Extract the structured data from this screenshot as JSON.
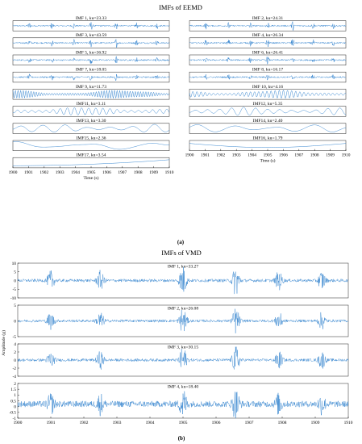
{
  "chart_data": [
    {
      "type": "line",
      "title": "IMFs of EEMD",
      "caption": "(a)",
      "xlabel": "Time (s)",
      "xlim": [
        1900,
        1910
      ],
      "xticks": [
        "1900",
        "1901",
        "1902",
        "1903",
        "1904",
        "1905",
        "1906",
        "1907",
        "1908",
        "1909",
        "1910"
      ],
      "series": [
        {
          "name": "IMF 1, ku=23.33",
          "kurtosis": 23.33,
          "kind": "impulsive"
        },
        {
          "name": "IMF 2, ku=24.31",
          "kurtosis": 24.31,
          "kind": "impulsive"
        },
        {
          "name": "IMF 3, ku=43.59",
          "kurtosis": 43.59,
          "kind": "impulsive"
        },
        {
          "name": "IMF 4, ku=26.34",
          "kurtosis": 26.34,
          "kind": "impulsive"
        },
        {
          "name": "IMF 5, ku=36.92",
          "kurtosis": 36.92,
          "kind": "impulsive"
        },
        {
          "name": "IMF 6, ku=26.41",
          "kurtosis": 26.41,
          "kind": "impulsive"
        },
        {
          "name": "IMF 7, ku=18.05",
          "kurtosis": 18.05,
          "kind": "impulsive"
        },
        {
          "name": "IMF 8, ku=16.17",
          "kurtosis": 16.17,
          "kind": "impulsive"
        },
        {
          "name": "IMF 9, ku=11.73",
          "kurtosis": 11.73,
          "kind": "oscillatory",
          "cycles": 60
        },
        {
          "name": "IMF 10, ku=4.16",
          "kurtosis": 4.16,
          "kind": "oscillatory",
          "cycles": 38
        },
        {
          "name": "IMF11, ku=3.11",
          "kurtosis": 3.11,
          "kind": "oscillatory",
          "cycles": 22
        },
        {
          "name": "IMF12, ku=5.35",
          "kurtosis": 5.35,
          "kind": "oscillatory",
          "cycles": 13
        },
        {
          "name": "IMF13, ku=3.30",
          "kurtosis": 3.3,
          "kind": "oscillatory",
          "cycles": 7
        },
        {
          "name": "IMF14, ku=2.40",
          "kurtosis": 2.4,
          "kind": "oscillatory",
          "cycles": 4
        },
        {
          "name": "IMF15, ku=2.36",
          "kurtosis": 2.36,
          "kind": "oscillatory",
          "cycles": 2.2
        },
        {
          "name": "IMF16, ku=1.79",
          "kurtosis": 1.79,
          "kind": "trend_sag"
        },
        {
          "name": "IMF17, ku=3.54",
          "kurtosis": 3.54,
          "kind": "trend_rise"
        }
      ],
      "colors": {
        "line": "#1f77c9"
      }
    },
    {
      "type": "line",
      "title": "IMFs of VMD",
      "caption": "(b)",
      "xlabel": "",
      "ylabel": "Amplitude (g)",
      "xlim": [
        1900,
        1910
      ],
      "xticks": [
        "1900",
        "1901",
        "1902",
        "1903",
        "1904",
        "1905",
        "1906",
        "1907",
        "1908",
        "1909",
        "1910"
      ],
      "series": [
        {
          "name": "IMF 1, ku=33.27",
          "kurtosis": 33.27,
          "ylim": [
            -10,
            10
          ],
          "yticks": [
            "10",
            "5",
            "0",
            "-5",
            "-10"
          ]
        },
        {
          "name": "IMF 2, ku=26.08",
          "kurtosis": 26.08,
          "ylim": [
            -5,
            5
          ],
          "yticks": [
            "5",
            "0",
            "-5"
          ]
        },
        {
          "name": "IMF 3, ku=30.15",
          "kurtosis": 30.15,
          "ylim": [
            -4,
            4
          ],
          "yticks": [
            "4",
            "2",
            "0",
            "-2",
            "-4"
          ]
        },
        {
          "name": "IMF 4, ku=18.40",
          "kurtosis": 18.4,
          "ylim": [
            -2,
            2
          ],
          "yticks": [
            "2",
            "1.5",
            "1",
            "0.5",
            "0",
            "-0.5",
            "-1"
          ]
        }
      ],
      "burst_times": [
        1901.0,
        1902.5,
        1905.0,
        1906.6,
        1907.9,
        1909.2
      ],
      "colors": {
        "line": "#1f77c9"
      }
    }
  ]
}
